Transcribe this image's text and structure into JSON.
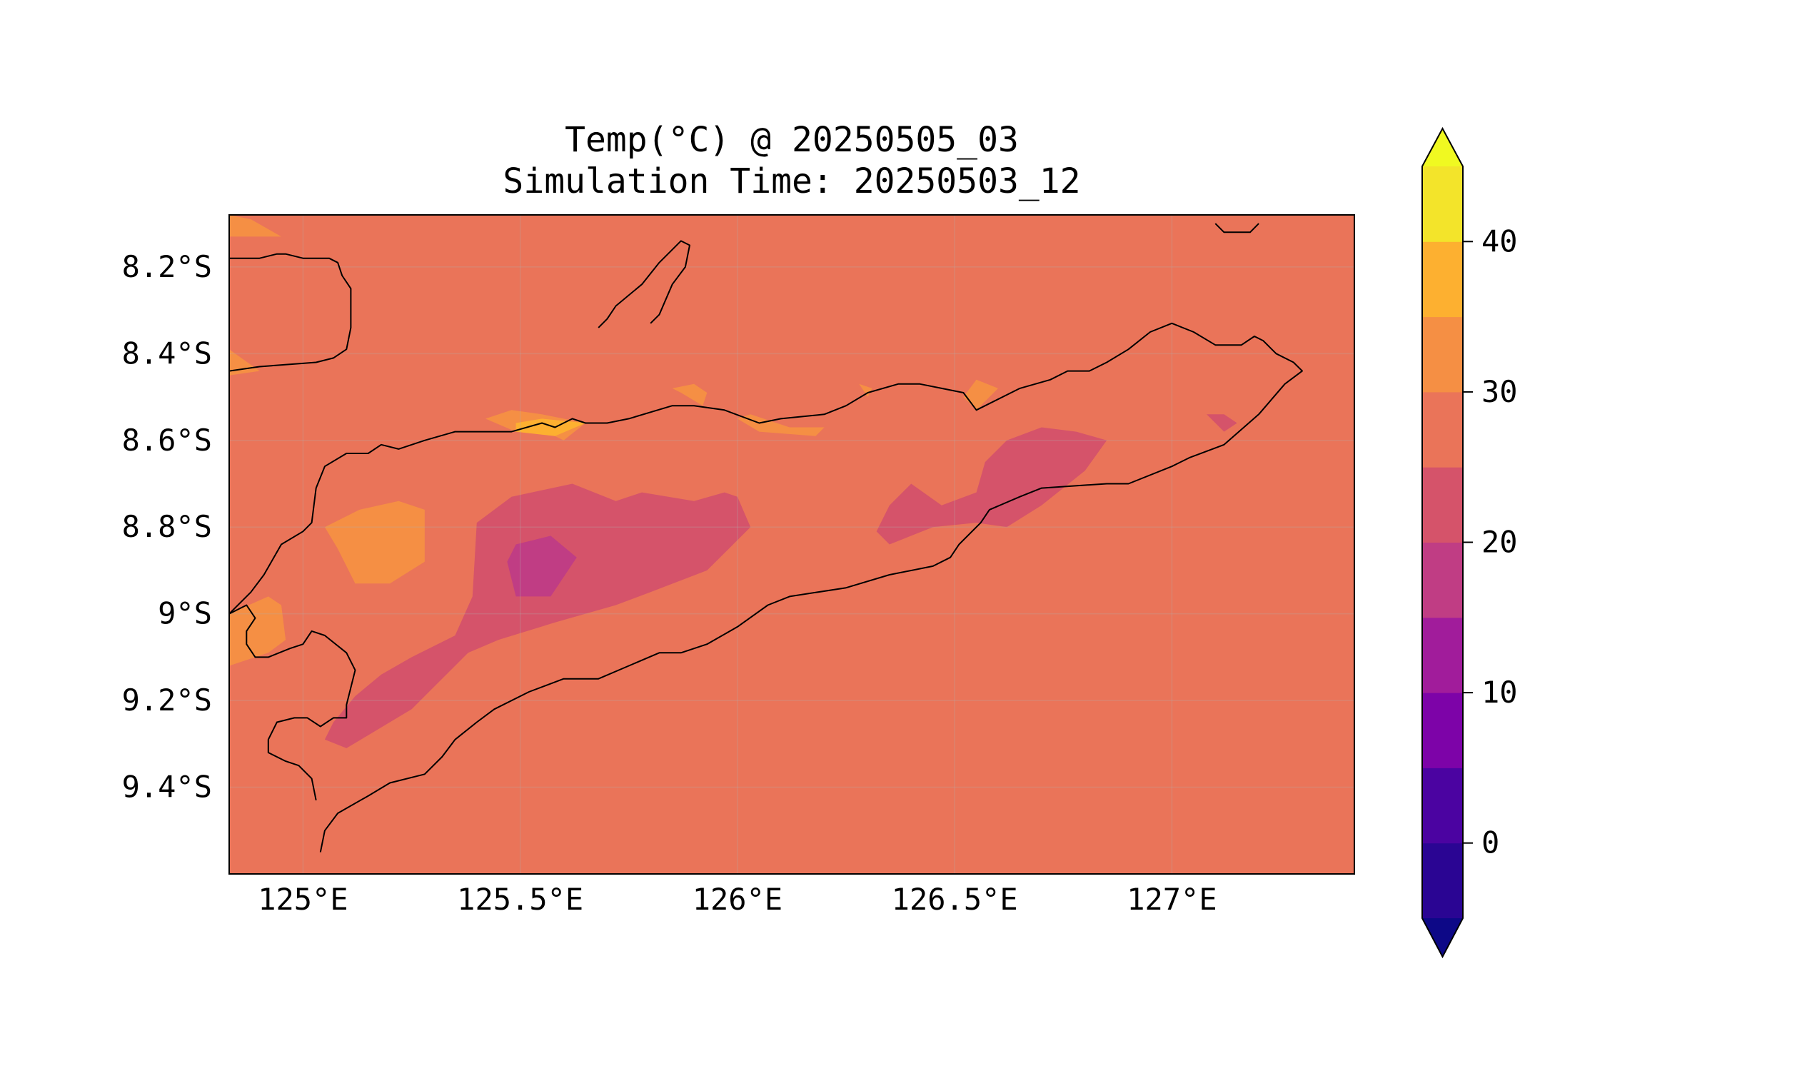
{
  "title": "Temp(°C) @ 20250505_03",
  "subtitle": "Simulation Time: 20250503_12",
  "map": {
    "xticks": [
      {
        "value": 125.0,
        "label": "125°E"
      },
      {
        "value": 125.5,
        "label": "125.5°E"
      },
      {
        "value": 126.0,
        "label": "126°E"
      },
      {
        "value": 126.5,
        "label": "126.5°E"
      },
      {
        "value": 127.0,
        "label": "127°E"
      }
    ],
    "yticks": [
      {
        "value": -8.2,
        "label": "8.2°S"
      },
      {
        "value": -8.4,
        "label": "8.4°S"
      },
      {
        "value": -8.6,
        "label": "8.6°S"
      },
      {
        "value": -8.8,
        "label": "8.8°S"
      },
      {
        "value": -9.0,
        "label": "9°S"
      },
      {
        "value": -9.2,
        "label": "9.2°S"
      },
      {
        "value": -9.4,
        "label": "9.4°S"
      }
    ],
    "background_color": "#ea7459",
    "zones": [
      {
        "name": "30-35",
        "color": "#f58f44",
        "polygons": [
          [
            [
              124.83,
              -8.39
            ],
            [
              124.9,
              -8.44
            ],
            [
              124.83,
              -8.45
            ]
          ],
          [
            [
              124.83,
              -8.08
            ],
            [
              124.88,
              -8.09
            ],
            [
              124.95,
              -8.13
            ],
            [
              124.83,
              -8.13
            ]
          ],
          [
            [
              125.13,
              -8.76
            ],
            [
              125.22,
              -8.74
            ],
            [
              125.28,
              -8.76
            ],
            [
              125.28,
              -8.88
            ],
            [
              125.2,
              -8.93
            ],
            [
              125.12,
              -8.93
            ],
            [
              125.08,
              -8.85
            ],
            [
              125.05,
              -8.8
            ]
          ],
          [
            [
              124.83,
              -9.0
            ],
            [
              124.92,
              -8.96
            ],
            [
              124.95,
              -8.98
            ],
            [
              124.96,
              -9.06
            ],
            [
              124.92,
              -9.09
            ],
            [
              124.83,
              -9.12
            ]
          ],
          [
            [
              125.49,
              -8.58
            ],
            [
              125.58,
              -8.59
            ],
            [
              125.6,
              -8.6
            ],
            [
              125.65,
              -8.56
            ],
            [
              125.55,
              -8.54
            ],
            [
              125.48,
              -8.53
            ],
            [
              125.42,
              -8.55
            ]
          ],
          [
            [
              125.85,
              -8.48
            ],
            [
              125.9,
              -8.47
            ],
            [
              125.93,
              -8.49
            ],
            [
              125.92,
              -8.52
            ],
            [
              125.87,
              -8.49
            ]
          ],
          [
            [
              126.0,
              -8.55
            ],
            [
              126.05,
              -8.58
            ],
            [
              126.18,
              -8.59
            ],
            [
              126.2,
              -8.57
            ],
            [
              126.12,
              -8.57
            ],
            [
              126.03,
              -8.54
            ]
          ],
          [
            [
              126.28,
              -8.47
            ],
            [
              126.31,
              -8.48
            ],
            [
              126.3,
              -8.5
            ]
          ],
          [
            [
              126.52,
              -8.5
            ],
            [
              126.55,
              -8.46
            ],
            [
              126.6,
              -8.48
            ],
            [
              126.55,
              -8.53
            ]
          ]
        ]
      },
      {
        "name": "35-40",
        "color": "#fdb030",
        "polygons": [
          [
            [
              125.49,
              -8.58
            ],
            [
              125.58,
              -8.59
            ],
            [
              125.65,
              -8.56
            ],
            [
              125.55,
              -8.55
            ],
            [
              125.49,
              -8.56
            ]
          ]
        ]
      },
      {
        "name": "20-25",
        "color": "#d5536a",
        "polygons": [
          [
            [
              125.4,
              -8.79
            ],
            [
              125.48,
              -8.73
            ],
            [
              125.62,
              -8.7
            ],
            [
              125.72,
              -8.74
            ],
            [
              125.78,
              -8.72
            ],
            [
              125.9,
              -8.74
            ],
            [
              125.97,
              -8.72
            ],
            [
              126.0,
              -8.73
            ],
            [
              126.03,
              -8.8
            ],
            [
              125.98,
              -8.85
            ],
            [
              125.93,
              -8.9
            ],
            [
              125.8,
              -8.95
            ],
            [
              125.72,
              -8.98
            ],
            [
              125.58,
              -9.02
            ],
            [
              125.45,
              -9.06
            ],
            [
              125.38,
              -9.09
            ],
            [
              125.3,
              -9.17
            ],
            [
              125.25,
              -9.22
            ],
            [
              125.15,
              -9.28
            ],
            [
              125.1,
              -9.31
            ],
            [
              125.05,
              -9.29
            ],
            [
              125.07,
              -9.25
            ],
            [
              125.12,
              -9.19
            ],
            [
              125.18,
              -9.14
            ],
            [
              125.25,
              -9.1
            ],
            [
              125.35,
              -9.05
            ],
            [
              125.39,
              -8.96
            ]
          ],
          [
            [
              126.32,
              -8.81
            ],
            [
              126.35,
              -8.75
            ],
            [
              126.4,
              -8.7
            ],
            [
              126.47,
              -8.75
            ],
            [
              126.55,
              -8.72
            ],
            [
              126.57,
              -8.65
            ],
            [
              126.62,
              -8.6
            ],
            [
              126.7,
              -8.57
            ],
            [
              126.78,
              -8.58
            ],
            [
              126.85,
              -8.6
            ],
            [
              126.8,
              -8.67
            ],
            [
              126.7,
              -8.75
            ],
            [
              126.62,
              -8.8
            ],
            [
              126.55,
              -8.79
            ],
            [
              126.45,
              -8.8
            ],
            [
              126.35,
              -8.84
            ]
          ],
          [
            [
              127.08,
              -8.54
            ],
            [
              127.12,
              -8.54
            ],
            [
              127.15,
              -8.56
            ],
            [
              127.12,
              -8.58
            ]
          ]
        ]
      },
      {
        "name": "15-20",
        "color": "#c03d84",
        "polygons": [
          [
            [
              125.47,
              -8.88
            ],
            [
              125.49,
              -8.84
            ],
            [
              125.57,
              -8.82
            ],
            [
              125.63,
              -8.87
            ],
            [
              125.57,
              -8.96
            ],
            [
              125.49,
              -8.96
            ]
          ]
        ]
      }
    ],
    "coastlines": [
      [
        [
          125.04,
          -9.55
        ],
        [
          125.05,
          -9.5
        ],
        [
          125.08,
          -9.46
        ],
        [
          125.15,
          -9.42
        ],
        [
          125.2,
          -9.39
        ],
        [
          125.28,
          -9.37
        ],
        [
          125.32,
          -9.33
        ],
        [
          125.35,
          -9.29
        ],
        [
          125.4,
          -9.25
        ],
        [
          125.44,
          -9.22
        ],
        [
          125.52,
          -9.18
        ],
        [
          125.6,
          -9.15
        ],
        [
          125.68,
          -9.15
        ],
        [
          125.75,
          -9.12
        ],
        [
          125.82,
          -9.09
        ],
        [
          125.87,
          -9.09
        ],
        [
          125.93,
          -9.07
        ],
        [
          126.0,
          -9.03
        ],
        [
          126.07,
          -8.98
        ],
        [
          126.12,
          -8.96
        ],
        [
          126.25,
          -8.94
        ],
        [
          126.35,
          -8.91
        ],
        [
          126.45,
          -8.89
        ],
        [
          126.49,
          -8.87
        ],
        [
          126.51,
          -8.84
        ],
        [
          126.56,
          -8.79
        ],
        [
          126.58,
          -8.76
        ],
        [
          126.65,
          -8.73
        ],
        [
          126.7,
          -8.71
        ],
        [
          126.85,
          -8.7
        ],
        [
          126.9,
          -8.7
        ],
        [
          127.0,
          -8.66
        ],
        [
          127.04,
          -8.64
        ],
        [
          127.12,
          -8.61
        ],
        [
          127.2,
          -8.54
        ],
        [
          127.26,
          -8.47
        ],
        [
          127.3,
          -8.44
        ],
        [
          127.28,
          -8.42
        ],
        [
          127.24,
          -8.4
        ],
        [
          127.21,
          -8.37
        ],
        [
          127.19,
          -8.36
        ],
        [
          127.16,
          -8.38
        ],
        [
          127.1,
          -8.38
        ],
        [
          127.05,
          -8.35
        ],
        [
          127.0,
          -8.33
        ],
        [
          126.95,
          -8.35
        ],
        [
          126.9,
          -8.39
        ],
        [
          126.85,
          -8.42
        ],
        [
          126.81,
          -8.44
        ],
        [
          126.76,
          -8.44
        ],
        [
          126.72,
          -8.46
        ],
        [
          126.65,
          -8.48
        ],
        [
          126.55,
          -8.53
        ],
        [
          126.52,
          -8.49
        ],
        [
          126.47,
          -8.48
        ],
        [
          126.42,
          -8.47
        ],
        [
          126.37,
          -8.47
        ],
        [
          126.3,
          -8.49
        ],
        [
          126.25,
          -8.52
        ],
        [
          126.2,
          -8.54
        ],
        [
          126.1,
          -8.55
        ],
        [
          126.05,
          -8.56
        ],
        [
          125.97,
          -8.53
        ],
        [
          125.9,
          -8.52
        ],
        [
          125.85,
          -8.52
        ],
        [
          125.75,
          -8.55
        ],
        [
          125.7,
          -8.56
        ],
        [
          125.65,
          -8.56
        ],
        [
          125.62,
          -8.55
        ],
        [
          125.58,
          -8.57
        ],
        [
          125.55,
          -8.56
        ],
        [
          125.48,
          -8.58
        ],
        [
          125.42,
          -8.58
        ],
        [
          125.35,
          -8.58
        ],
        [
          125.28,
          -8.6
        ],
        [
          125.22,
          -8.62
        ],
        [
          125.18,
          -8.61
        ],
        [
          125.15,
          -8.63
        ],
        [
          125.1,
          -8.63
        ],
        [
          125.05,
          -8.66
        ],
        [
          125.03,
          -8.71
        ],
        [
          125.02,
          -8.79
        ],
        [
          125.0,
          -8.81
        ],
        [
          124.95,
          -8.84
        ],
        [
          124.91,
          -8.91
        ],
        [
          124.88,
          -8.95
        ],
        [
          124.83,
          -9.0
        ]
      ],
      [
        [
          125.03,
          -9.43
        ],
        [
          125.02,
          -9.38
        ],
        [
          124.99,
          -9.35
        ],
        [
          124.96,
          -9.34
        ],
        [
          124.92,
          -9.32
        ],
        [
          124.92,
          -9.29
        ],
        [
          124.94,
          -9.25
        ],
        [
          124.98,
          -9.24
        ],
        [
          125.01,
          -9.24
        ],
        [
          125.04,
          -9.26
        ],
        [
          125.07,
          -9.24
        ],
        [
          125.1,
          -9.24
        ],
        [
          125.1,
          -9.21
        ],
        [
          125.12,
          -9.13
        ],
        [
          125.1,
          -9.09
        ],
        [
          125.05,
          -9.05
        ],
        [
          125.02,
          -9.04
        ],
        [
          125.0,
          -9.07
        ],
        [
          124.97,
          -9.08
        ],
        [
          124.92,
          -9.1
        ],
        [
          124.89,
          -9.1
        ],
        [
          124.87,
          -9.07
        ],
        [
          124.87,
          -9.04
        ],
        [
          124.89,
          -9.01
        ],
        [
          124.87,
          -8.98
        ],
        [
          124.83,
          -9.0
        ]
      ],
      [
        [
          124.83,
          -8.44
        ],
        [
          124.9,
          -8.43
        ],
        [
          125.03,
          -8.42
        ],
        [
          125.07,
          -8.41
        ],
        [
          125.1,
          -8.39
        ],
        [
          125.11,
          -8.34
        ],
        [
          125.11,
          -8.25
        ],
        [
          125.09,
          -8.22
        ],
        [
          125.08,
          -8.19
        ],
        [
          125.06,
          -8.18
        ],
        [
          125.0,
          -8.18
        ],
        [
          124.96,
          -8.17
        ],
        [
          124.94,
          -8.17
        ],
        [
          124.9,
          -8.18
        ],
        [
          124.83,
          -8.18
        ]
      ],
      [
        [
          125.68,
          -8.34
        ],
        [
          125.7,
          -8.32
        ],
        [
          125.72,
          -8.29
        ],
        [
          125.78,
          -8.24
        ],
        [
          125.82,
          -8.19
        ],
        [
          125.85,
          -8.16
        ],
        [
          125.87,
          -8.14
        ],
        [
          125.89,
          -8.15
        ],
        [
          125.88,
          -8.2
        ],
        [
          125.85,
          -8.24
        ],
        [
          125.82,
          -8.31
        ],
        [
          125.8,
          -8.33
        ]
      ],
      [
        [
          127.1,
          -8.1
        ],
        [
          127.12,
          -8.12
        ],
        [
          127.18,
          -8.12
        ],
        [
          127.2,
          -8.1
        ]
      ]
    ]
  },
  "colorbar": {
    "ticks": [
      {
        "value": 0,
        "label": "0"
      },
      {
        "value": 10,
        "label": "10"
      },
      {
        "value": 20,
        "label": "20"
      },
      {
        "value": 30,
        "label": "30"
      },
      {
        "value": 40,
        "label": "40"
      }
    ],
    "levels": [
      {
        "from": -5,
        "to": 0,
        "color": "#2a0593"
      },
      {
        "from": 0,
        "to": 5,
        "color": "#4b03a1"
      },
      {
        "from": 5,
        "to": 10,
        "color": "#7d03a8"
      },
      {
        "from": 10,
        "to": 15,
        "color": "#a11c9b"
      },
      {
        "from": 15,
        "to": 20,
        "color": "#c03d84"
      },
      {
        "from": 20,
        "to": 25,
        "color": "#d5536a"
      },
      {
        "from": 25,
        "to": 30,
        "color": "#ea7459"
      },
      {
        "from": 30,
        "to": 35,
        "color": "#f58f44"
      },
      {
        "from": 35,
        "to": 40,
        "color": "#fdb030"
      },
      {
        "from": 40,
        "to": 45,
        "color": "#f3e42a"
      }
    ],
    "under_color": "#0d0887",
    "over_color": "#f0f921"
  }
}
